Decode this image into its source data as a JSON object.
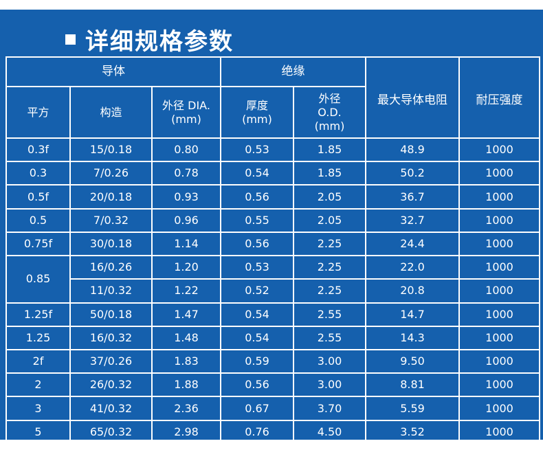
{
  "title": "详细规格参数",
  "colors": {
    "panel": "#1560ad",
    "text": "#ffffff",
    "border": "#ffffff",
    "page": "#ffffff"
  },
  "header": {
    "group_conductor": "导体",
    "group_insulation": "绝缘",
    "max_resistance": "最大导体电阻",
    "withstand_voltage": "耐压强度",
    "cols": {
      "area": "平方",
      "construction": "构造",
      "conductor_od": "外径 DIA.\n(mm)",
      "thickness": "厚度\n(mm)",
      "insulation_od": "外径\nO.D.\n(mm)"
    }
  },
  "rows": [
    [
      "0.3f",
      "15/0.18",
      "0.80",
      "0.53",
      "1.85",
      "48.9",
      "1000"
    ],
    [
      "0.3",
      "7/0.26",
      "0.78",
      "0.54",
      "1.85",
      "50.2",
      "1000"
    ],
    [
      "0.5f",
      "20/0.18",
      "0.93",
      "0.56",
      "2.05",
      "36.7",
      "1000"
    ],
    [
      "0.5",
      "7/0.32",
      "0.96",
      "0.55",
      "2.05",
      "32.7",
      "1000"
    ],
    [
      "0.75f",
      "30/0.18",
      "1.14",
      "0.56",
      "2.25",
      "24.4",
      "1000"
    ],
    [
      "0.85",
      "16/0.26",
      "1.20",
      "0.53",
      "2.25",
      "22.0",
      "1000"
    ],
    [
      "",
      "11/0.32",
      "1.22",
      "0.52",
      "2.25",
      "20.8",
      "1000"
    ],
    [
      "1.25f",
      "50/0.18",
      "1.47",
      "0.54",
      "2.55",
      "14.7",
      "1000"
    ],
    [
      "1.25",
      "16/0.32",
      "1.48",
      "0.54",
      "2.55",
      "14.3",
      "1000"
    ],
    [
      "2f",
      "37/0.26",
      "1.83",
      "0.59",
      "3.00",
      "9.50",
      "1000"
    ],
    [
      "2",
      "26/0.32",
      "1.88",
      "0.56",
      "3.00",
      "8.81",
      "1000"
    ],
    [
      "3",
      "41/0.32",
      "2.36",
      "0.67",
      "3.70",
      "5.59",
      "1000"
    ],
    [
      "5",
      "65/0.32",
      "2.98",
      "0.76",
      "4.50",
      "3.52",
      "1000"
    ]
  ]
}
